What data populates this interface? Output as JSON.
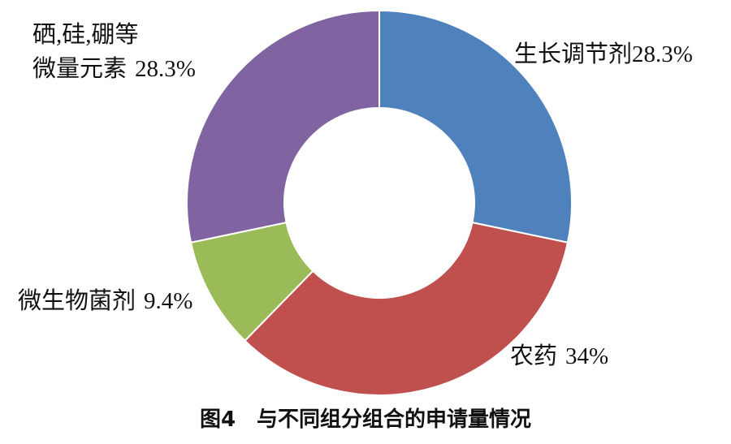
{
  "chart_data": {
    "type": "donut",
    "caption": "图4　与不同组分组合的申请量情况",
    "categories": [
      "生长调节剂",
      "农药",
      "微生物菌剂",
      "硒,硅,硼等\n微量元素"
    ],
    "values": [
      28.3,
      34,
      9.4,
      28.3
    ],
    "value_labels": [
      "28.3%",
      "34%",
      "9.4%",
      "28.3%"
    ],
    "colors": [
      "#4f81bd",
      "#c0504d",
      "#9bbb59",
      "#8064a2"
    ]
  }
}
